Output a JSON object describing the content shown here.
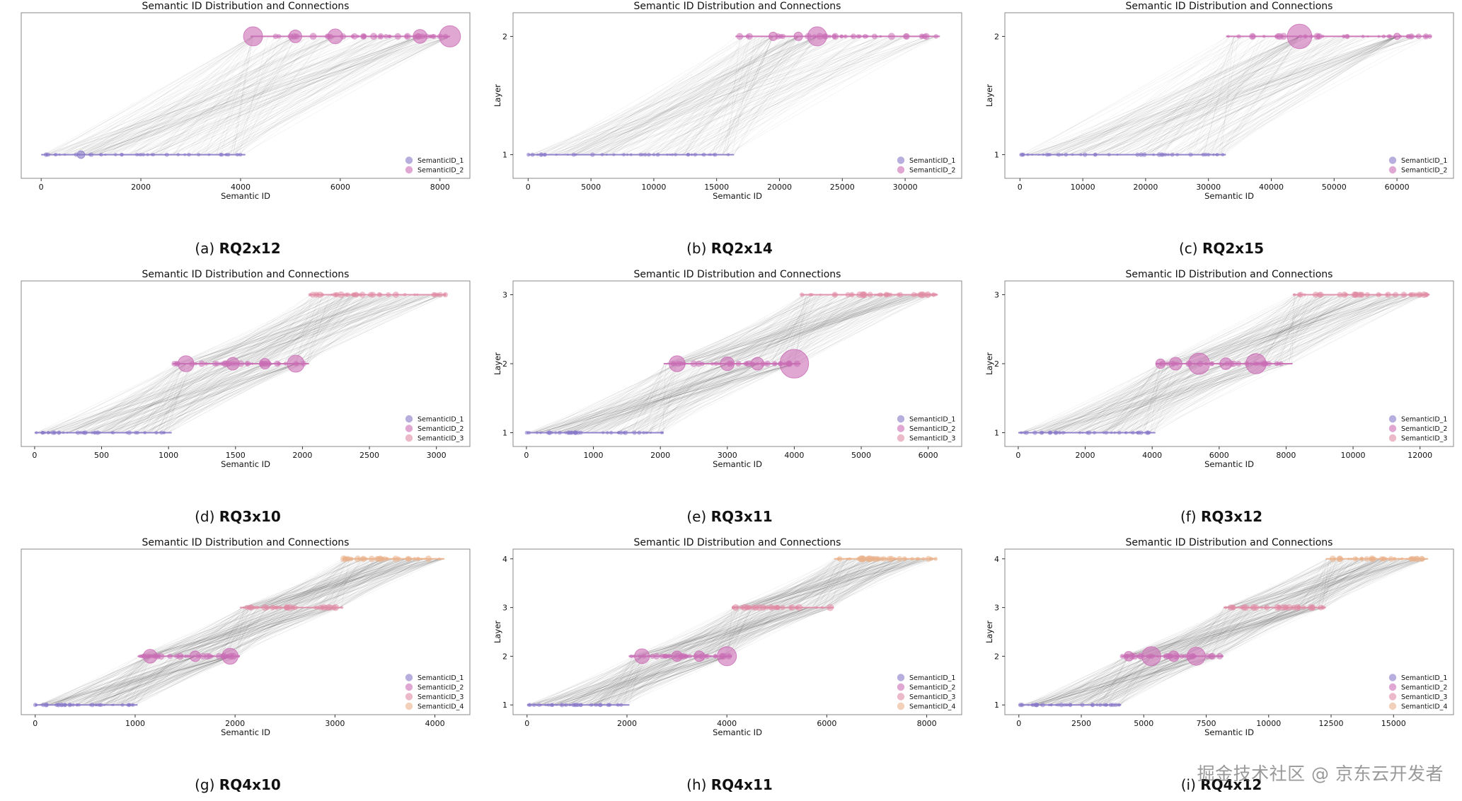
{
  "figure": {
    "watermark": "掘金技术社区 @ 京东云开发者"
  },
  "chart_data": [
    {
      "id": "a",
      "type": "scatter",
      "title": "Semantic ID Distribution and Connections",
      "xlabel": "Semantic ID",
      "ylabel": "",
      "caption_prefix": "(a) ",
      "caption_bold": "RQ2x12",
      "layers": 2,
      "xlim": [
        -400,
        8600
      ],
      "ylim": [
        0.8,
        2.2
      ],
      "xticks": [
        0,
        2000,
        4000,
        6000,
        8000
      ],
      "yticks": [],
      "ytick_labels": [],
      "layer_ranges": [
        [
          0,
          4096
        ],
        [
          4200,
          8200
        ]
      ],
      "legend": [
        "SemanticID_1",
        "SemanticID_2"
      ],
      "hubs": [
        [
          1,
          800,
          0.7
        ],
        [
          2,
          4250,
          1.8
        ],
        [
          2,
          5100,
          1.2
        ],
        [
          2,
          5900,
          1.4
        ],
        [
          2,
          7600,
          1.3
        ],
        [
          2,
          8200,
          2.0
        ]
      ]
    },
    {
      "id": "b",
      "type": "scatter",
      "title": "Semantic ID Distribution and Connections",
      "xlabel": "Semantic ID",
      "ylabel": "Layer",
      "caption_prefix": "(b) ",
      "caption_bold": "RQ2x14",
      "layers": 2,
      "xlim": [
        -1200,
        34500
      ],
      "ylim": [
        0.8,
        2.2
      ],
      "xticks": [
        0,
        5000,
        10000,
        15000,
        20000,
        25000,
        30000
      ],
      "yticks": [
        1,
        2
      ],
      "ytick_labels": [
        "1",
        "2"
      ],
      "layer_ranges": [
        [
          0,
          16384
        ],
        [
          16500,
          32768
        ]
      ],
      "legend": [
        "SemanticID_1",
        "SemanticID_2"
      ],
      "hubs": [
        [
          2,
          23000,
          1.8
        ],
        [
          2,
          19500,
          0.8
        ],
        [
          2,
          21500,
          0.8
        ]
      ]
    },
    {
      "id": "c",
      "type": "scatter",
      "title": "Semantic ID Distribution and Connections",
      "xlabel": "Semantic ID",
      "ylabel": "Layer",
      "caption_prefix": "(c) ",
      "caption_bold": "RQ2x15",
      "layers": 2,
      "xlim": [
        -2400,
        69000
      ],
      "ylim": [
        0.8,
        2.2
      ],
      "xticks": [
        0,
        10000,
        20000,
        30000,
        40000,
        50000,
        60000
      ],
      "yticks": [
        1,
        2
      ],
      "ytick_labels": [
        "1",
        "2"
      ],
      "layer_ranges": [
        [
          0,
          32768
        ],
        [
          32800,
          65536
        ]
      ],
      "legend": [
        "SemanticID_1",
        "SemanticID_2"
      ],
      "hubs": [
        [
          2,
          44500,
          2.3
        ],
        [
          2,
          60000,
          0.6
        ]
      ]
    },
    {
      "id": "d",
      "type": "scatter",
      "title": "Semantic ID Distribution and Connections",
      "xlabel": "Semantic ID",
      "ylabel": "",
      "caption_prefix": "(d) ",
      "caption_bold": "RQ3x10",
      "layers": 3,
      "xlim": [
        -100,
        3250
      ],
      "ylim": [
        0.8,
        3.2
      ],
      "xticks": [
        0,
        500,
        1000,
        1500,
        2000,
        2500,
        3000
      ],
      "yticks": [],
      "ytick_labels": [],
      "layer_ranges": [
        [
          0,
          1024
        ],
        [
          1030,
          2048
        ],
        [
          2050,
          3072
        ]
      ],
      "legend": [
        "SemanticID_1",
        "SemanticID_2",
        "SemanticID_3"
      ],
      "hubs": [
        [
          2,
          1130,
          1.5
        ],
        [
          2,
          1480,
          1.2
        ],
        [
          2,
          1950,
          1.6
        ],
        [
          2,
          1720,
          1.0
        ]
      ]
    },
    {
      "id": "e",
      "type": "scatter",
      "title": "Semantic ID Distribution and Connections",
      "xlabel": "Semantic ID",
      "ylabel": "Layer",
      "caption_prefix": "(e) ",
      "caption_bold": "RQ3x11",
      "layers": 3,
      "xlim": [
        -200,
        6500
      ],
      "ylim": [
        0.8,
        3.2
      ],
      "xticks": [
        0,
        1000,
        2000,
        3000,
        4000,
        5000,
        6000
      ],
      "yticks": [
        1,
        2,
        3
      ],
      "ytick_labels": [
        "1",
        "2",
        "3"
      ],
      "layer_ranges": [
        [
          0,
          2048
        ],
        [
          2049,
          4096
        ],
        [
          4097,
          6144
        ]
      ],
      "legend": [
        "SemanticID_1",
        "SemanticID_2",
        "SemanticID_3"
      ],
      "hubs": [
        [
          2,
          2250,
          1.5
        ],
        [
          2,
          3000,
          1.3
        ],
        [
          2,
          3450,
          1.2
        ],
        [
          2,
          4000,
          2.7
        ]
      ]
    },
    {
      "id": "f",
      "type": "scatter",
      "title": "Semantic ID Distribution and Connections",
      "xlabel": "Semantic ID",
      "ylabel": "Layer",
      "caption_prefix": "(f) ",
      "caption_bold": "RQ3x12",
      "layers": 3,
      "xlim": [
        -400,
        13000
      ],
      "ylim": [
        0.8,
        3.2
      ],
      "xticks": [
        0,
        2000,
        4000,
        6000,
        8000,
        10000,
        12000
      ],
      "yticks": [
        1,
        2,
        3
      ],
      "ytick_labels": [
        "1",
        "2",
        "3"
      ],
      "layer_ranges": [
        [
          0,
          4096
        ],
        [
          4100,
          8192
        ],
        [
          8200,
          12288
        ]
      ],
      "legend": [
        "SemanticID_1",
        "SemanticID_2",
        "SemanticID_3"
      ],
      "hubs": [
        [
          2,
          5400,
          2.0
        ],
        [
          2,
          7100,
          1.9
        ],
        [
          2,
          4700,
          1.2
        ],
        [
          2,
          6200,
          1.1
        ],
        [
          2,
          4250,
          0.9
        ]
      ]
    },
    {
      "id": "g",
      "type": "scatter",
      "title": "Semantic ID Distribution and Connections",
      "xlabel": "Semantic ID",
      "ylabel": "",
      "caption_prefix": "(g) ",
      "caption_bold": "RQ4x10",
      "layers": 4,
      "xlim": [
        -140,
        4350
      ],
      "ylim": [
        0.8,
        4.2
      ],
      "xticks": [
        0,
        1000,
        2000,
        3000,
        4000
      ],
      "yticks": [],
      "ytick_labels": [],
      "layer_ranges": [
        [
          0,
          1024
        ],
        [
          1025,
          2048
        ],
        [
          2049,
          3072
        ],
        [
          3073,
          4096
        ]
      ],
      "legend": [
        "SemanticID_1",
        "SemanticID_2",
        "SemanticID_3",
        "SemanticID_4"
      ],
      "hubs": [
        [
          2,
          1150,
          1.3
        ],
        [
          2,
          1950,
          1.5
        ],
        [
          2,
          1600,
          1.0
        ]
      ]
    },
    {
      "id": "h",
      "type": "scatter",
      "title": "Semantic ID Distribution and Connections",
      "xlabel": "Semantic ID",
      "ylabel": "Layer",
      "caption_prefix": "(h) ",
      "caption_bold": "RQ4x11",
      "layers": 4,
      "xlim": [
        -280,
        8700
      ],
      "ylim": [
        0.8,
        4.2
      ],
      "xticks": [
        0,
        2000,
        4000,
        6000,
        8000
      ],
      "yticks": [
        1,
        2,
        3,
        4
      ],
      "ytick_labels": [
        "1",
        "2",
        "3",
        "4"
      ],
      "layer_ranges": [
        [
          0,
          2048
        ],
        [
          2049,
          4096
        ],
        [
          4097,
          6144
        ],
        [
          6145,
          8192
        ]
      ],
      "legend": [
        "SemanticID_1",
        "SemanticID_2",
        "SemanticID_3",
        "SemanticID_4"
      ],
      "hubs": [
        [
          2,
          2300,
          1.4
        ],
        [
          2,
          4000,
          1.8
        ],
        [
          2,
          3000,
          1.0
        ],
        [
          2,
          3450,
          1.0
        ]
      ]
    },
    {
      "id": "i",
      "type": "scatter",
      "title": "Semantic ID Distribution and Connections",
      "xlabel": "Semantic ID",
      "ylabel": "Layer",
      "caption_prefix": "(i) ",
      "caption_bold": "RQ4x12",
      "layers": 4,
      "xlim": [
        -560,
        17400
      ],
      "ylim": [
        0.8,
        4.2
      ],
      "xticks": [
        0,
        2500,
        5000,
        7500,
        10000,
        12500,
        15000
      ],
      "yticks": [
        1,
        2,
        3,
        4
      ],
      "ytick_labels": [
        "1",
        "2",
        "3",
        "4"
      ],
      "layer_ranges": [
        [
          0,
          4096
        ],
        [
          4097,
          8192
        ],
        [
          8193,
          12288
        ],
        [
          12289,
          16384
        ]
      ],
      "legend": [
        "SemanticID_1",
        "SemanticID_2",
        "SemanticID_3",
        "SemanticID_4"
      ],
      "hubs": [
        [
          2,
          5300,
          1.8
        ],
        [
          2,
          7100,
          1.7
        ],
        [
          2,
          6200,
          1.0
        ],
        [
          2,
          4400,
          0.9
        ]
      ]
    }
  ],
  "style": {
    "layer_colors": [
      "#8878c8",
      "#c96cb4",
      "#e08aa4",
      "#eab08a"
    ],
    "link_color": "#000000",
    "axis_color": "#888888"
  }
}
